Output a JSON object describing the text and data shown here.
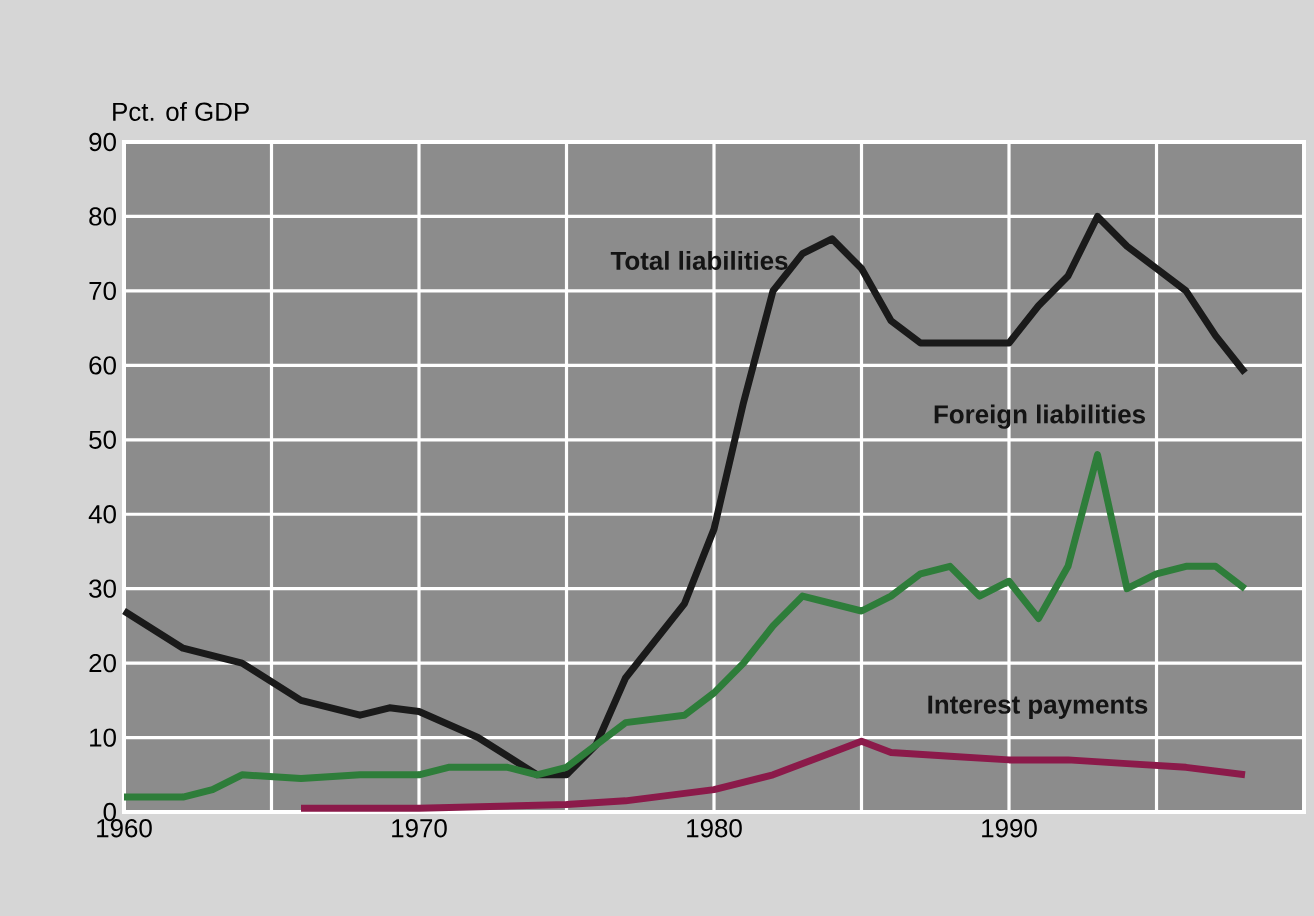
{
  "chart_data": {
    "type": "line",
    "ylabel": "Pct. of GDP",
    "xlim": [
      1960,
      2000
    ],
    "ylim": [
      0,
      90
    ],
    "xticks": [
      1960,
      {
        "value": 1965,
        "label": null
      },
      1970,
      {
        "value": 1975,
        "label": null
      },
      1980,
      {
        "value": 1985,
        "label": null
      },
      1990,
      {
        "value": 1995,
        "label": null
      }
    ],
    "yticks": [
      0,
      10,
      20,
      30,
      40,
      50,
      60,
      70,
      80,
      90
    ],
    "grid": true,
    "marker": "none",
    "line_style": "solid",
    "series": [
      {
        "name": "Total liabilities",
        "color": "#1a1a1a",
        "x": [
          1960,
          1962,
          1964,
          1966,
          1968,
          1969,
          1970,
          1972,
          1974,
          1975,
          1976,
          1977,
          1979,
          1980,
          1981,
          1982,
          1983,
          1984,
          1985,
          1986,
          1987,
          1988,
          1989,
          1990,
          1991,
          1992,
          1993,
          1994,
          1995,
          1996,
          1997,
          1998
        ],
        "values": [
          27,
          22,
          20,
          15,
          13,
          14,
          13.5,
          10,
          5,
          5,
          9,
          18,
          28,
          38,
          55,
          70,
          75,
          77,
          73,
          66,
          63,
          63,
          63,
          63,
          68,
          72,
          80,
          76,
          73,
          70,
          64,
          59
        ]
      },
      {
        "name": "Foreign liabilities",
        "color": "#2e7d3a",
        "x": [
          1960,
          1962,
          1963,
          1964,
          1966,
          1968,
          1970,
          1971,
          1973,
          1974,
          1975,
          1976,
          1977,
          1979,
          1980,
          1981,
          1982,
          1983,
          1984,
          1985,
          1986,
          1987,
          1988,
          1989,
          1990,
          1991,
          1992,
          1993,
          1994,
          1995,
          1996,
          1997,
          1998
        ],
        "values": [
          2,
          2,
          3,
          5,
          4.5,
          5,
          5,
          6,
          6,
          5,
          6,
          9,
          12,
          13,
          16,
          20,
          25,
          29,
          28,
          27,
          29,
          32,
          33,
          29,
          31,
          26,
          33,
          48,
          30,
          32,
          33,
          33,
          30
        ]
      },
      {
        "name": "Interest payments",
        "color": "#8b1a4a",
        "x": [
          1966,
          1970,
          1975,
          1977,
          1980,
          1982,
          1984,
          1985,
          1986,
          1988,
          1990,
          1992,
          1994,
          1996,
          1998
        ],
        "values": [
          0.5,
          0.5,
          1,
          1.5,
          3,
          5,
          8,
          9.5,
          8,
          7.5,
          7,
          7,
          6.5,
          6,
          5
        ]
      }
    ]
  }
}
